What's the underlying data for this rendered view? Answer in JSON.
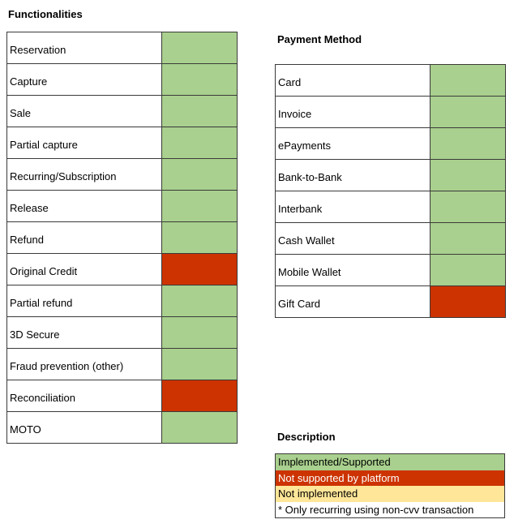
{
  "colors": {
    "supported": "#a9d08e",
    "not_supported": "#cc3300",
    "not_implemented": "#ffe699",
    "note": "#ffffff"
  },
  "functionalities": {
    "title": "Functionalities",
    "rows": [
      {
        "label": "Reservation",
        "status": "supported"
      },
      {
        "label": "Capture",
        "status": "supported"
      },
      {
        "label": "Sale",
        "status": "supported"
      },
      {
        "label": "Partial capture",
        "status": "supported"
      },
      {
        "label": "Recurring/Subscription",
        "status": "supported"
      },
      {
        "label": "Release",
        "status": "supported"
      },
      {
        "label": "Refund",
        "status": "supported"
      },
      {
        "label": "Original Credit",
        "status": "not_supported"
      },
      {
        "label": "Partial refund",
        "status": "supported"
      },
      {
        "label": "3D Secure",
        "status": "supported"
      },
      {
        "label": "Fraud prevention (other)",
        "status": "supported"
      },
      {
        "label": "Reconciliation",
        "status": "not_supported"
      },
      {
        "label": "MOTO",
        "status": "supported"
      }
    ]
  },
  "payment_methods": {
    "title": "Payment Method",
    "rows": [
      {
        "label": "Card",
        "status": "supported"
      },
      {
        "label": "Invoice",
        "status": "supported"
      },
      {
        "label": "ePayments",
        "status": "supported"
      },
      {
        "label": "Bank-to-Bank",
        "status": "supported"
      },
      {
        "label": "Interbank",
        "status": "supported"
      },
      {
        "label": "Cash Wallet",
        "status": "supported"
      },
      {
        "label": "Mobile Wallet",
        "status": "supported"
      },
      {
        "label": "Gift Card",
        "status": "not_supported"
      }
    ]
  },
  "description": {
    "title": "Description",
    "items": [
      {
        "text": "Implemented/Supported",
        "status": "supported"
      },
      {
        "text": "Not supported by platform",
        "status": "not_supported"
      },
      {
        "text": "Not implemented",
        "status": "not_implemented"
      },
      {
        "text": "* Only recurring using non-cvv transaction",
        "status": "note"
      }
    ]
  }
}
